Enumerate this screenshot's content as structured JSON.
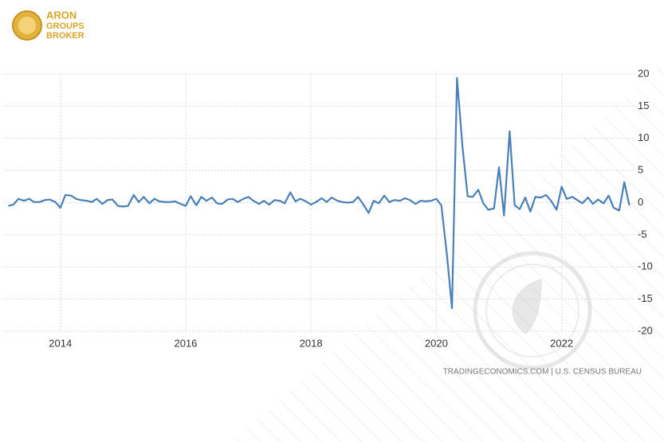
{
  "logo": {
    "line1": "ARON",
    "line2": "GROUPS",
    "line3": "BROKER"
  },
  "chart_data": {
    "type": "line",
    "source": "TRADINGECONOMICS.COM  |  U.S. CENSUS BUREAU",
    "x": [
      2013.17,
      2013.25,
      2013.33,
      2013.42,
      2013.5,
      2013.58,
      2013.67,
      2013.75,
      2013.83,
      2013.92,
      2014.0,
      2014.08,
      2014.17,
      2014.25,
      2014.33,
      2014.42,
      2014.5,
      2014.58,
      2014.67,
      2014.75,
      2014.83,
      2014.92,
      2015.0,
      2015.08,
      2015.17,
      2015.25,
      2015.33,
      2015.42,
      2015.5,
      2015.58,
      2015.67,
      2015.75,
      2015.83,
      2015.92,
      2016.0,
      2016.08,
      2016.17,
      2016.25,
      2016.33,
      2016.42,
      2016.5,
      2016.58,
      2016.67,
      2016.75,
      2016.83,
      2016.92,
      2017.0,
      2017.08,
      2017.17,
      2017.25,
      2017.33,
      2017.42,
      2017.5,
      2017.58,
      2017.67,
      2017.75,
      2017.83,
      2017.92,
      2018.0,
      2018.08,
      2018.17,
      2018.25,
      2018.33,
      2018.42,
      2018.5,
      2018.58,
      2018.67,
      2018.75,
      2018.83,
      2018.92,
      2019.0,
      2019.08,
      2019.17,
      2019.25,
      2019.33,
      2019.42,
      2019.5,
      2019.58,
      2019.67,
      2019.75,
      2019.83,
      2019.92,
      2020.0,
      2020.08,
      2020.17,
      2020.25,
      2020.33,
      2020.42,
      2020.5,
      2020.58,
      2020.67,
      2020.75,
      2020.83,
      2020.92,
      2021.0,
      2021.08,
      2021.17,
      2021.25,
      2021.33,
      2021.42,
      2021.5,
      2021.58,
      2021.67,
      2021.75,
      2021.83,
      2021.92,
      2022.0,
      2022.08,
      2022.17,
      2022.25,
      2022.33,
      2022.42,
      2022.5,
      2022.58,
      2022.67,
      2022.75,
      2022.83,
      2022.92,
      2023.0,
      2023.08
    ],
    "series": [
      {
        "color": "#4a80b8",
        "values": [
          -0.5,
          -0.3,
          0.6,
          0.3,
          0.6,
          0.1,
          0.1,
          0.4,
          0.5,
          0.1,
          -0.8,
          1.2,
          1.1,
          0.6,
          0.4,
          0.3,
          0.1,
          0.6,
          -0.2,
          0.4,
          0.5,
          -0.5,
          -0.6,
          -0.5,
          1.2,
          0.1,
          0.9,
          -0.1,
          0.6,
          0.2,
          0.1,
          0.1,
          0.2,
          -0.2,
          -0.5,
          1.0,
          -0.4,
          0.9,
          0.3,
          0.8,
          -0.1,
          -0.2,
          0.5,
          0.6,
          0.1,
          0.6,
          0.9,
          0.3,
          -0.2,
          0.3,
          -0.3,
          0.4,
          0.3,
          -0.1,
          1.6,
          0.2,
          0.6,
          0.2,
          -0.3,
          0.1,
          0.7,
          0.1,
          0.8,
          0.3,
          0.1,
          0.0,
          0.1,
          0.9,
          -0.2,
          -1.6,
          0.3,
          -0.1,
          1.1,
          0.1,
          0.4,
          0.3,
          0.7,
          0.4,
          -0.2,
          0.3,
          0.2,
          0.3,
          0.6,
          -0.4,
          -8.2,
          -16.4,
          19.4,
          8.4,
          1.0,
          0.9,
          2.0,
          -0.1,
          -1.1,
          -0.9,
          5.5,
          -2.0,
          11.1,
          -0.4,
          -1.0,
          0.8,
          -1.4,
          0.9,
          0.8,
          1.2,
          0.3,
          -1.1,
          2.5,
          0.6,
          0.9,
          0.4,
          -0.1,
          0.8,
          -0.2,
          0.5,
          -0.1,
          1.1,
          -0.8,
          -1.2,
          3.2,
          -0.4
        ]
      }
    ],
    "xlim": [
      2013.1,
      2023.15
    ],
    "xticks": [
      2014,
      2016,
      2018,
      2020,
      2022
    ],
    "ylim": [
      -20,
      20
    ],
    "yticks": [
      -20,
      -15,
      -10,
      -5,
      0,
      5,
      10,
      15,
      20
    ],
    "grid": true
  }
}
